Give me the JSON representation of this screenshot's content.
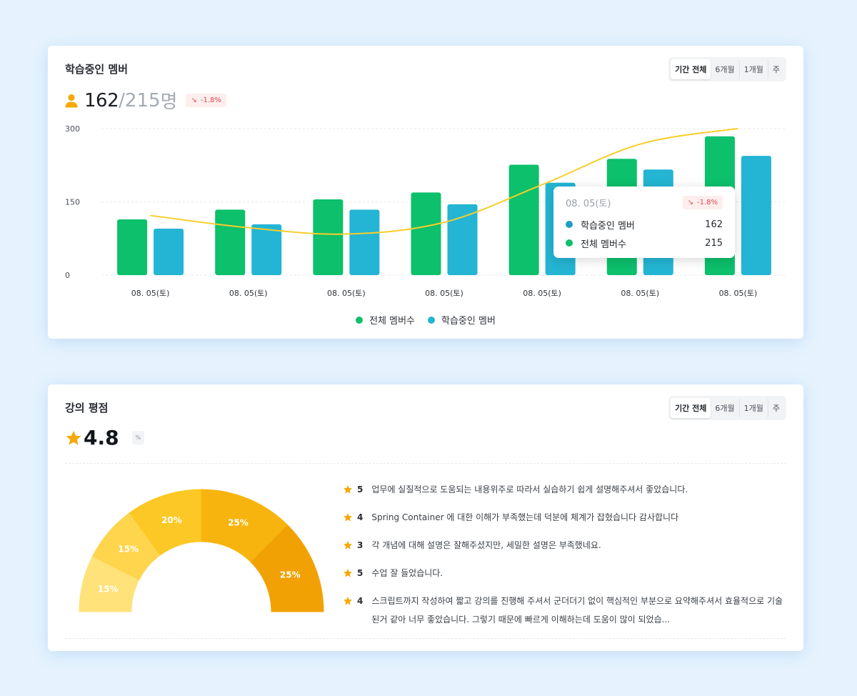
{
  "member_card": {
    "title": "학습중인 멤버",
    "period_tabs": [
      "기간 전체",
      "6개월",
      "1개월",
      "주"
    ],
    "active_tab": "기간 전체",
    "current": "162",
    "separator": "/",
    "total": "215",
    "unit": "명",
    "delta": "-1.8%",
    "delta_color": "#e0484c",
    "icon": "user-icon",
    "accent": "#f5a90a",
    "legend": [
      {
        "label": "전체 멤버수",
        "color": "#0cc06c"
      },
      {
        "label": "학습중인 멤버",
        "color": "#23b5d3"
      }
    ],
    "tooltip": {
      "date": "08. 05(토)",
      "delta": "-1.8%",
      "rows": [
        {
          "label": "학습중인 멤버",
          "value": "162",
          "color": "#1c9fc2"
        },
        {
          "label": "전체 멤버수",
          "value": "215",
          "color": "#0cc06c"
        }
      ]
    }
  },
  "chart_data": {
    "type": "bar",
    "categories": [
      "08. 05(토)",
      "08. 05(토)",
      "08. 05(토)",
      "08. 05(토)",
      "08. 05(토)",
      "08. 05(토)",
      "08. 05(토)"
    ],
    "series": [
      {
        "name": "전체 멤버수",
        "type": "bar",
        "color": "#0cc06c",
        "values": [
          114,
          134,
          155,
          169,
          226,
          238,
          284
        ]
      },
      {
        "name": "학습중인 멤버",
        "type": "bar",
        "color": "#23b5d3",
        "values": [
          95,
          104,
          134,
          145,
          189,
          216,
          244
        ]
      },
      {
        "type": "line",
        "color": "#f9cd2a",
        "values": [
          122,
          97,
          84,
          108,
          185,
          268,
          300
        ]
      }
    ],
    "yticks": [
      0,
      150,
      300
    ],
    "ylim": [
      0,
      310
    ],
    "grid": true,
    "legend_position": "bottom-center"
  },
  "rating_card": {
    "title": "강의 평점",
    "period_tabs": [
      "기간 전체",
      "6개월",
      "1개월",
      "주"
    ],
    "active_tab": "기간 전체",
    "rating": "4.8",
    "small_badge": "%",
    "star_color": "#f5a90a",
    "gauge": [
      {
        "label": "15%",
        "value": 15,
        "color": "#ffe27a"
      },
      {
        "label": "15%",
        "value": 15,
        "color": "#fed54d"
      },
      {
        "label": "20%",
        "value": 20,
        "color": "#fcc825"
      },
      {
        "label": "25%",
        "value": 25,
        "color": "#f8b40e"
      },
      {
        "label": "25%",
        "value": 25,
        "color": "#f2a104"
      }
    ],
    "reviews": [
      {
        "score": "5",
        "text": "업무에 실질적으로 도움되는 내용위주로 따라서 실습하기 쉽게 설명해주셔서 좋았습니다."
      },
      {
        "score": "4",
        "text": "Spring Container 에 대한 이해가 부족했는데 덕분에 체계가 잡혔습니다 감사합니다"
      },
      {
        "score": "3",
        "text": "각 개념에 대해 설명은 잘해주셨지만, 세밀한 설명은 부족했네요."
      },
      {
        "score": "5",
        "text": "수업 잘 들었습니다."
      },
      {
        "score": "4",
        "text": "스크립트까지 작성하여 짧고 강의를 진행해 주셔서 군더더기 없이 핵심적인 부분으로 요약해주셔서 효율적으로 기술된거 같아 너무 좋았습니다. 그렇기 때문에 빠르게 이해하는데 도움이 많이 되었습..."
      }
    ]
  }
}
